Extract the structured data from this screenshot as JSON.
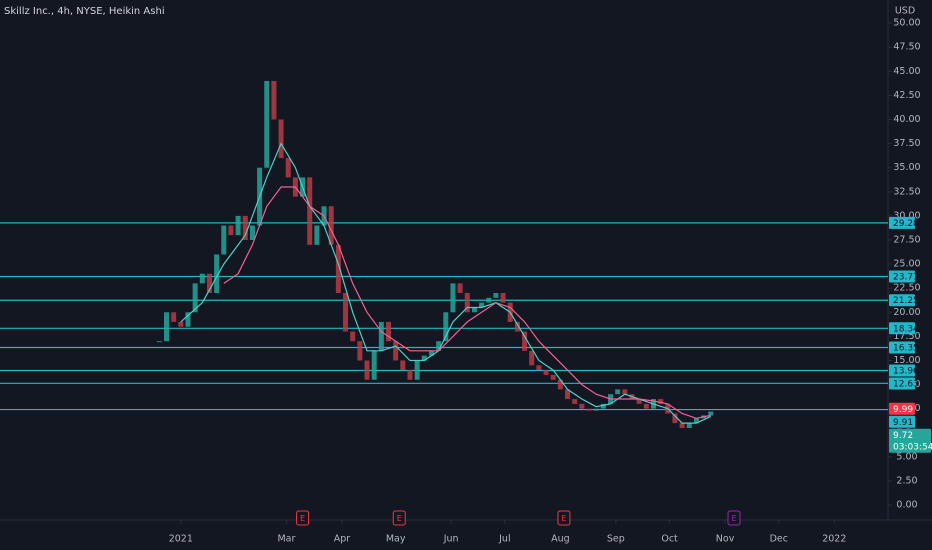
{
  "chart_data": {
    "type": "candlestick",
    "title": "Skillz Inc., 4h, NYSE, Heikin Ashi",
    "currency": "USD",
    "up_color": "#26a69a",
    "down_color": "#b83c44",
    "x": [
      -12,
      -8,
      -4,
      0,
      4,
      8,
      12,
      16,
      20,
      24,
      28,
      32,
      36,
      40,
      44,
      48,
      52,
      56,
      60,
      64,
      68,
      72,
      76,
      80,
      84,
      88,
      92,
      96,
      100,
      104,
      108,
      112,
      116,
      120,
      124,
      128,
      132,
      136,
      140,
      144,
      148,
      152,
      156,
      160,
      164,
      168,
      172,
      176,
      180,
      184,
      188,
      192,
      196,
      200,
      204,
      208,
      212,
      216,
      220,
      224,
      228,
      232,
      236,
      240,
      244,
      248,
      252,
      256,
      260,
      264,
      268,
      272,
      276,
      280,
      284,
      288,
      292,
      296
    ],
    "close": [
      17,
      20,
      19,
      18.5,
      20,
      23,
      24,
      22,
      26,
      29,
      28,
      30,
      27.5,
      29,
      35,
      44,
      40,
      36,
      34,
      32,
      34,
      27,
      29,
      31,
      27,
      22,
      18,
      17,
      15,
      13,
      16,
      19,
      17,
      15,
      14,
      13,
      15,
      15.5,
      16,
      17,
      20,
      23,
      22,
      20,
      20.5,
      21,
      21.5,
      22,
      21,
      19,
      18,
      16,
      14.5,
      14,
      13.5,
      13,
      12,
      11,
      10.5,
      10,
      9.8,
      10,
      10.5,
      11.5,
      12,
      11.5,
      11,
      10.5,
      10,
      11,
      10.5,
      9.5,
      8.5,
      8,
      8.5,
      9,
      9.3,
      9.7
    ],
    "ma_series": [
      {
        "color": "#4dd0c9",
        "x": [
          0,
          12,
          24,
          36,
          48,
          56,
          64,
          72,
          80,
          88,
          96,
          104,
          112,
          120,
          128,
          136,
          144,
          152,
          160,
          168,
          176,
          184,
          192,
          200,
          208,
          216,
          224,
          232,
          240,
          248,
          256,
          264,
          272,
          280,
          288,
          296
        ],
        "values": [
          19,
          21,
          25,
          28,
          34,
          37.5,
          35,
          31,
          29,
          25,
          20,
          16,
          16,
          16.5,
          15,
          15,
          16,
          19,
          20.5,
          20.5,
          21,
          20,
          17.5,
          15,
          14,
          12,
          11,
          10.2,
          10.5,
          11.5,
          11,
          10.5,
          10,
          8.5,
          8.5,
          9.2
        ]
      },
      {
        "color": "#f06292",
        "x": [
          24,
          32,
          40,
          48,
          56,
          64,
          72,
          80,
          88,
          96,
          104,
          112,
          120,
          128,
          136,
          144,
          152,
          160,
          168,
          176,
          184,
          192,
          200,
          208,
          216,
          224,
          232,
          240,
          248,
          256,
          264,
          272,
          280,
          288,
          296
        ],
        "values": [
          23,
          24,
          27,
          31,
          33,
          33,
          31,
          30,
          27,
          23,
          20,
          18,
          17,
          16,
          16,
          16,
          17.5,
          19,
          20,
          21,
          20.5,
          19,
          17,
          15.5,
          14,
          12.5,
          11.5,
          11,
          11,
          11,
          10.8,
          10.5,
          9.5,
          9,
          9.3
        ]
      }
    ],
    "levels": {
      "color": "#22b8c9",
      "values": [
        29.28,
        23.71,
        21.25,
        18.34,
        16.35,
        13.96,
        12.63,
        9.91
      ]
    },
    "previous_close": {
      "value": 9.99,
      "color": "#f23645"
    },
    "last_price": {
      "value": 9.72,
      "countdown": "03:03:54",
      "color": "#26a69a"
    },
    "events": [
      {
        "x": 68,
        "label": "E",
        "color": "#f23645"
      },
      {
        "x": 122,
        "label": "E",
        "color": "#f23645"
      },
      {
        "x": 214,
        "label": "E",
        "color": "#f23645"
      },
      {
        "x": 309,
        "label": "E",
        "color": "#9c27b0"
      }
    ],
    "xlim": [
      -101,
      395
    ],
    "xticks": [
      {
        "value": 0,
        "label": "2021"
      },
      {
        "value": 59,
        "label": "Mar"
      },
      {
        "value": 90,
        "label": "Apr"
      },
      {
        "value": 120,
        "label": "May"
      },
      {
        "value": 151,
        "label": "Jun"
      },
      {
        "value": 181,
        "label": "Jul"
      },
      {
        "value": 212,
        "label": "Aug"
      },
      {
        "value": 243,
        "label": "Sep"
      },
      {
        "value": 273,
        "label": "Oct"
      },
      {
        "value": 304,
        "label": "Nov"
      },
      {
        "value": 334,
        "label": "Dec"
      },
      {
        "value": 365,
        "label": "2022"
      }
    ],
    "ylim": [
      -1.55,
      52.4
    ],
    "yticks": [
      {
        "value": 0,
        "label": "0.00"
      },
      {
        "value": 2.5,
        "label": "2.50"
      },
      {
        "value": 5,
        "label": "5.00"
      },
      {
        "value": 7.5,
        "label": "7.50"
      },
      {
        "value": 10,
        "label": "10.00"
      },
      {
        "value": 12.5,
        "label": "12.50"
      },
      {
        "value": 15,
        "label": "15.00"
      },
      {
        "value": 17.5,
        "label": "17.50"
      },
      {
        "value": 20,
        "label": "20.00"
      },
      {
        "value": 22.5,
        "label": "22.50"
      },
      {
        "value": 25,
        "label": "25.00"
      },
      {
        "value": 27.5,
        "label": "27.50"
      },
      {
        "value": 30,
        "label": "30.00"
      },
      {
        "value": 32.5,
        "label": "32.50"
      },
      {
        "value": 35,
        "label": "35.00"
      },
      {
        "value": 37.5,
        "label": "37.50"
      },
      {
        "value": 40,
        "label": "40.00"
      },
      {
        "value": 42.5,
        "label": "42.50"
      },
      {
        "value": 45,
        "label": "45.00"
      },
      {
        "value": 47.5,
        "label": "47.50"
      },
      {
        "value": 50,
        "label": "50.00"
      }
    ]
  }
}
